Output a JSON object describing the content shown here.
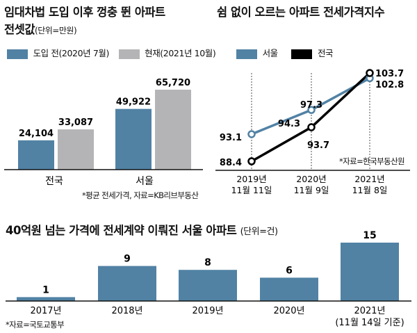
{
  "colors": {
    "blue": "#5182a4",
    "gray": "#b4b4b6",
    "black": "#000000"
  },
  "chart_data": [
    {
      "type": "bar",
      "title": "임대차법 도입 이후 껑충 뛴 아파트",
      "title2": "전셋값",
      "unit": "(단위=만원)",
      "categories": [
        "전국",
        "서울"
      ],
      "series": [
        {
          "name": "도입 전(2020년 7월)",
          "values": [
            24104,
            49922
          ],
          "labels": [
            "24,104",
            "49,922"
          ],
          "color": "#5182a4"
        },
        {
          "name": "현재(2021년 10월)",
          "values": [
            33087,
            65720
          ],
          "labels": [
            "33,087",
            "65,720"
          ],
          "color": "#b4b4b6"
        }
      ],
      "note": "*평균 전세가격, 자료=KB리브부동산",
      "ylim": [
        0,
        70000
      ]
    },
    {
      "type": "line",
      "title": "쉼 없이 오르는 아파트 전세가격지수",
      "x": [
        [
          "2019년",
          "11월 11일"
        ],
        [
          "2020년",
          "11월 9일"
        ],
        [
          "2021년",
          "11월 8일"
        ]
      ],
      "series": [
        {
          "name": "서울",
          "values": [
            93.1,
            97.3,
            102.8
          ],
          "labels": [
            "93.1",
            "97.3",
            "102.8"
          ],
          "color": "#5182a4"
        },
        {
          "name": "전국",
          "values": [
            88.4,
            94.3,
            103.7
          ],
          "labels": [
            "88.4",
            "94.3",
            "103.7"
          ],
          "color": "#000000"
        }
      ],
      "extra_label": "93.7",
      "note": "*자료=한국부동산원",
      "ylim": [
        86,
        106
      ]
    },
    {
      "type": "bar",
      "title": "40억원 넘는 가격에 전세계약 이뤄진 서울 아파트",
      "unit": "(단위=건)",
      "categories": [
        [
          "2017년"
        ],
        [
          "2018년"
        ],
        [
          "2019년"
        ],
        [
          "2020년"
        ],
        [
          "2021년",
          "(11월 14일 기준)"
        ]
      ],
      "values": [
        1,
        9,
        8,
        6,
        15
      ],
      "note": "*자료=국토교통부",
      "ylim": [
        0,
        15
      ],
      "color": "#5182a4"
    }
  ]
}
